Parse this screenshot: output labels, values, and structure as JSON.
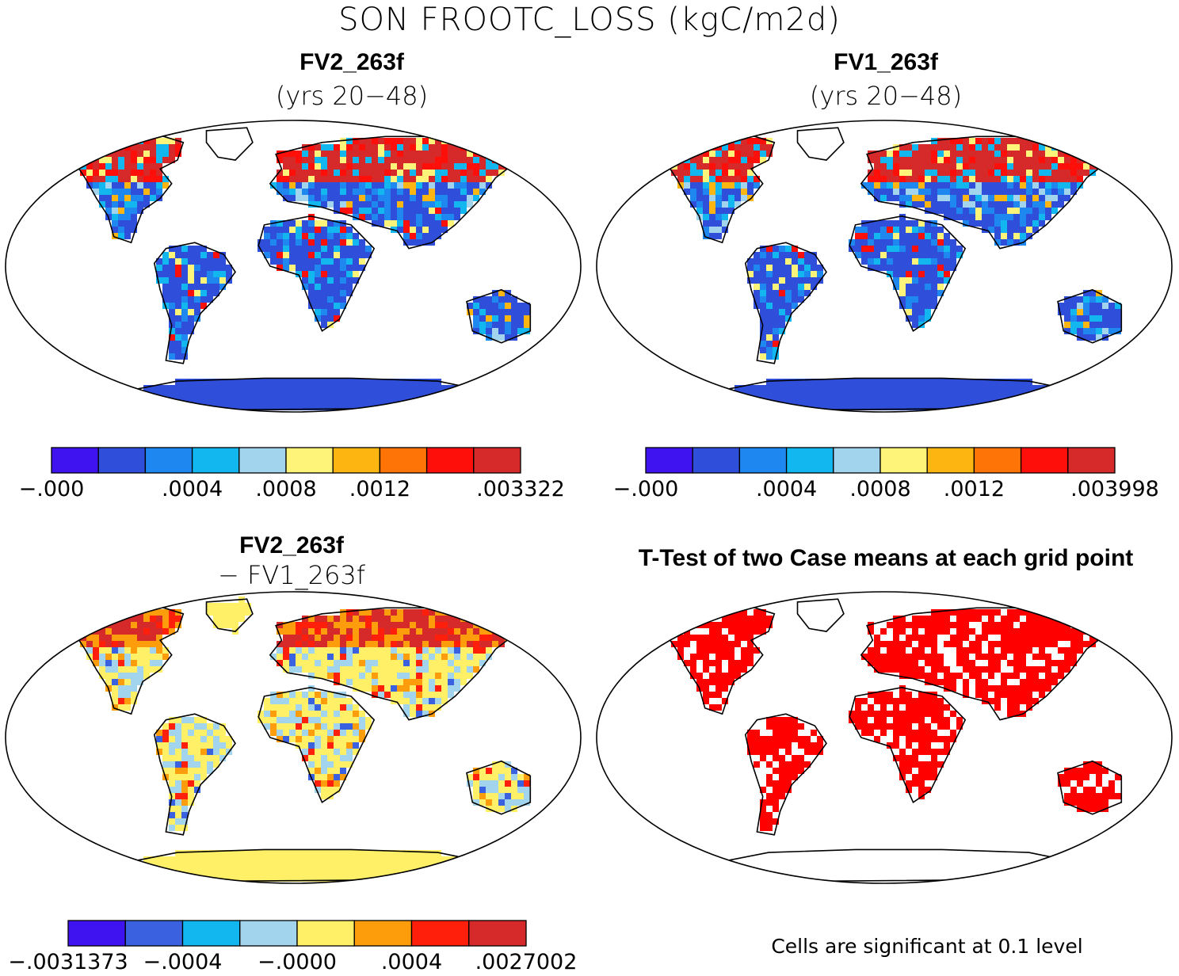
{
  "title": "SON FROOTC_LOSS (kgC/m2d)",
  "panels": [
    {
      "id": "fv2",
      "title": "FV2_263f",
      "subtitle": "(yrs 20−48)",
      "colorbar": {
        "colors": [
          "#3f12f0",
          "#2f4fdb",
          "#1f87f0",
          "#12b7ef",
          "#a3d4ee",
          "#fff47a",
          "#fdb511",
          "#ff7406",
          "#ff0f0a",
          "#d62a2a"
        ],
        "tick_labels": [
          "−.000",
          ".0004",
          ".0008",
          ".0012",
          ".003322"
        ],
        "tick_bins": [
          0,
          3,
          5,
          7,
          10
        ]
      },
      "palette": [
        "#2f4fdb",
        "#1f87f0",
        "#12b7ef",
        "#a3d4ee",
        "#fff47a",
        "#fdb511",
        "#ff7406",
        "#ff0f0a",
        "#d62a2a"
      ]
    },
    {
      "id": "fv1",
      "title": "FV1_263f",
      "subtitle": "(yrs 20−48)",
      "colorbar": {
        "colors": [
          "#3f12f0",
          "#2f4fdb",
          "#1f87f0",
          "#12b7ef",
          "#a3d4ee",
          "#fff47a",
          "#fdb511",
          "#ff7406",
          "#ff0f0a",
          "#d62a2a"
        ],
        "tick_labels": [
          "−.000",
          ".0004",
          ".0008",
          ".0012",
          ".003998"
        ],
        "tick_bins": [
          0,
          3,
          5,
          7,
          10
        ]
      }
    },
    {
      "id": "diff",
      "title": "FV2_263f",
      "subtitle": "− FV1_263f",
      "colorbar": {
        "colors": [
          "#3f12f0",
          "#3a62e0",
          "#12b7ef",
          "#a3d4ee",
          "#fff067",
          "#fd9d0b",
          "#ff1f0a",
          "#d62a2a"
        ],
        "tick_labels": [
          "−.0031373",
          "−.0004",
          "−.0000",
          ".0004",
          ".0027002"
        ],
        "tick_bins": [
          0,
          2,
          4,
          6,
          8
        ]
      }
    },
    {
      "id": "ttest",
      "title": "T-Test of two Case means at each grid point",
      "note": "Cells are significant at 0.1 level"
    }
  ],
  "significant_color": "#ff0000",
  "coast_color": "#000000"
}
